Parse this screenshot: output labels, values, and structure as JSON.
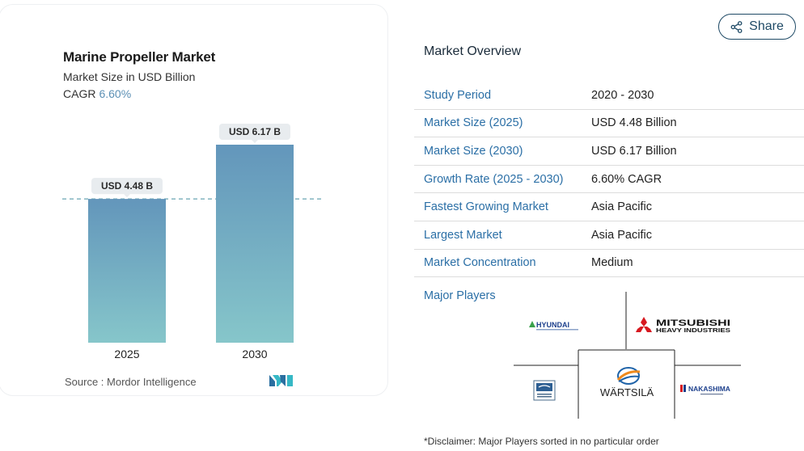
{
  "card": {
    "title": "Marine Propeller Market",
    "subtitle": "Market Size in USD Billion",
    "cagr_label": "CAGR",
    "cagr_value": "6.60%",
    "source": "Source :  Mordor Intelligence"
  },
  "chart_data": {
    "type": "bar",
    "categories": [
      "2025",
      "2030"
    ],
    "values": [
      4.48,
      6.17
    ],
    "data_labels": [
      "USD 4.48 B",
      "USD 6.17 B"
    ],
    "title": "Marine Propeller Market",
    "ylabel": "",
    "xlabel": "",
    "ylim": [
      0,
      6.17
    ],
    "grid": false,
    "reference_line": 4.48,
    "colors": {
      "bar_top": "#6396bb",
      "bar_bottom": "#86c6ca",
      "label_bg": "#e8ecef",
      "ref_line": "#6aa6b3"
    }
  },
  "share": {
    "label": "Share",
    "icon": "share-icon"
  },
  "overview": {
    "title": "Market Overview",
    "rows": [
      {
        "key": "Study Period",
        "value": "2020 - 2030"
      },
      {
        "key": "Market Size (2025)",
        "value": "USD 4.48 Billion"
      },
      {
        "key": "Market Size (2030)",
        "value": "USD 6.17 Billion"
      },
      {
        "key": "Growth Rate (2025 - 2030)",
        "value": "6.60% CAGR"
      },
      {
        "key": "Fastest Growing Market",
        "value": "Asia Pacific"
      },
      {
        "key": "Largest Market",
        "value": "Asia Pacific"
      },
      {
        "key": "Market Concentration",
        "value": "Medium"
      }
    ]
  },
  "players": {
    "title": "Major Players",
    "logos": [
      "HYUNDAI",
      "MITSUBISHI HEAVY INDUSTRIES",
      "WÄRTSILÄ",
      "NAKASHIMA"
    ],
    "disclaimer": "*Disclaimer: Major Players sorted in no particular order"
  }
}
